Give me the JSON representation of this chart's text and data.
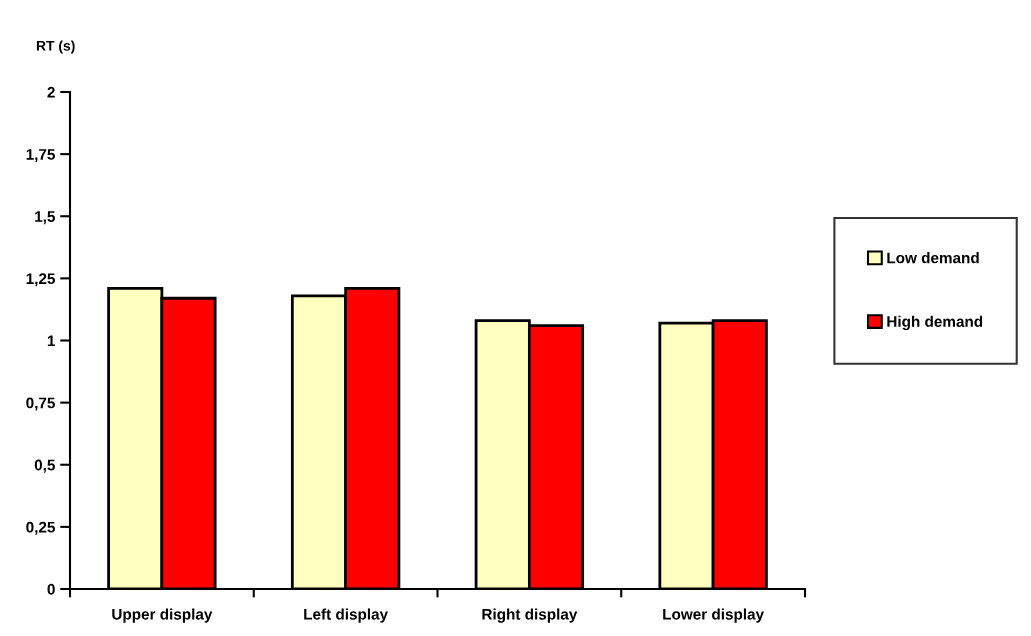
{
  "chart_data": {
    "type": "bar",
    "ylabel": "RT (s)",
    "categories": [
      "Upper display",
      "Left display",
      "Right display",
      "Lower display"
    ],
    "series": [
      {
        "name": "Low demand",
        "color": "#ffffc0",
        "values": [
          1.21,
          1.18,
          1.08,
          1.07
        ]
      },
      {
        "name": "High demand",
        "color": "#ff0000",
        "values": [
          1.17,
          1.21,
          1.06,
          1.08
        ]
      }
    ],
    "ylim": [
      0,
      2
    ],
    "yticks": [
      0,
      {
        "value": 0.25,
        "label": "0,25"
      },
      {
        "value": 0.5,
        "label": "0,5"
      },
      {
        "value": 0.75,
        "label": "0,75"
      },
      1,
      {
        "value": 1.25,
        "label": "1,25"
      },
      {
        "value": 1.5,
        "label": "1,5"
      },
      {
        "value": 1.75,
        "label": "1,75"
      },
      2
    ],
    "grid": false,
    "legend": "right"
  }
}
